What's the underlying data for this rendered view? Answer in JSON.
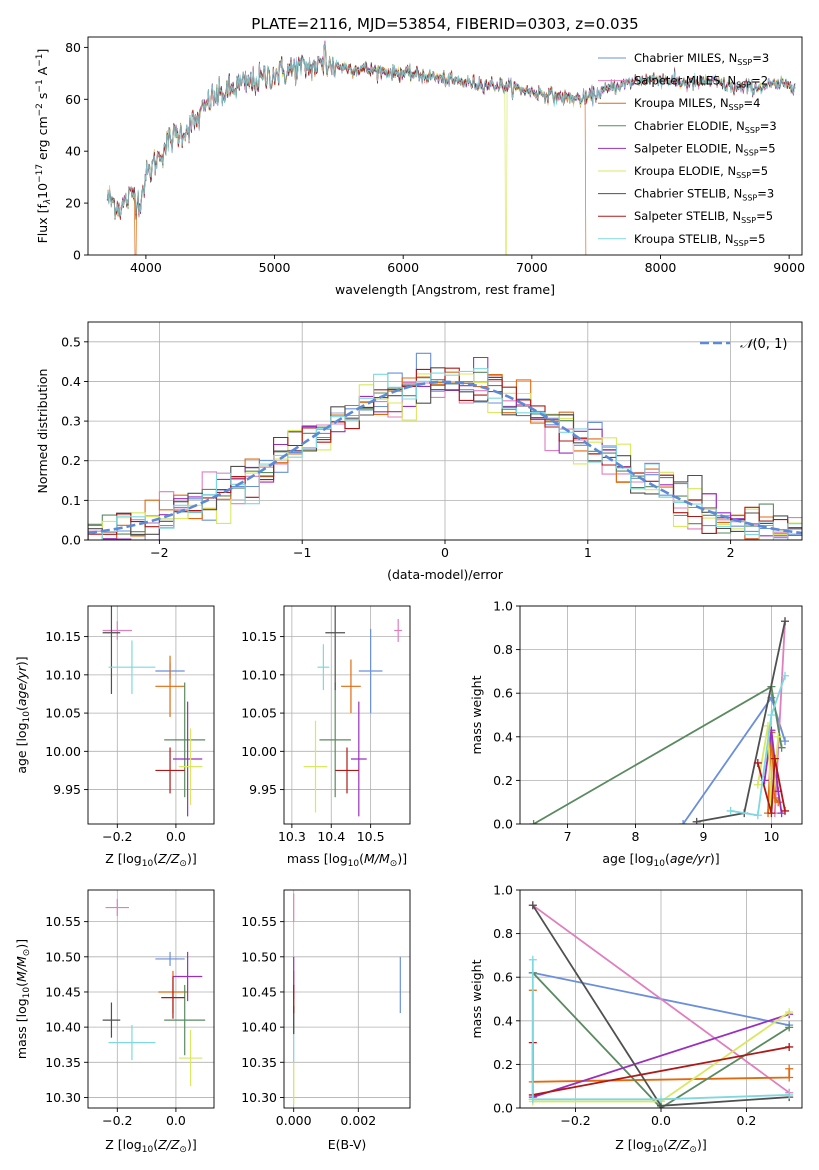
{
  "figure_title": "PLATE=2116, MJD=53854, FIBERID=0303, z=0.035",
  "colors": {
    "chabrier_miles": "#6a8fdc",
    "salpeter_miles": "#e07fbe",
    "kroupa_miles": "#e06a10",
    "chabrier_elodie": "#5a8a60",
    "salpeter_elodie": "#9a2fbe",
    "kroupa_elodie": "#d8e860",
    "chabrier_stelib": "#505050",
    "salpeter_stelib": "#b01818",
    "kroupa_stelib": "#7fd8e0",
    "normal_curve": "#5a8ad8",
    "grid": "#b0b0b0"
  },
  "chart_data": [
    {
      "id": "spectrum",
      "type": "line",
      "title": "PLATE=2116, MJD=53854, FIBERID=0303, z=0.035",
      "xlabel": "wavelength [Angstrom, rest frame]",
      "ylabel": "Flux [f_λ 10^-17 erg cm^-2 s^-1 A^-1]",
      "xlim": [
        3550,
        9100
      ],
      "ylim": [
        0,
        84
      ],
      "xticks": [
        4000,
        5000,
        6000,
        7000,
        8000,
        9000
      ],
      "yticks": [
        0,
        20,
        40,
        60,
        80
      ],
      "grid": false,
      "legend_position": "top-right",
      "data_range_x": [
        3700,
        9050
      ],
      "continuum": {
        "x": [
          3700,
          3800,
          3900,
          3950,
          4000,
          4100,
          4200,
          4300,
          4400,
          4500,
          4600,
          4700,
          4800,
          4900,
          5000,
          5200,
          5400,
          5600,
          5800,
          6000,
          6200,
          6400,
          6600,
          6800,
          7000,
          7200,
          7400,
          7600,
          7800,
          8000,
          8200,
          8400,
          8600,
          8800,
          9050
        ],
        "y": [
          22,
          18,
          24,
          20,
          30,
          38,
          45,
          48,
          52,
          60,
          62,
          65,
          66,
          68,
          70,
          72,
          73,
          72,
          71,
          70,
          69,
          67,
          66,
          65,
          63,
          61,
          60,
          64,
          67,
          68,
          66,
          67,
          64,
          65,
          66
        ]
      },
      "dropouts": [
        {
          "series": 2,
          "x": 3920
        },
        {
          "series": 5,
          "x": 6800
        },
        {
          "series": 2,
          "x": 7420
        }
      ],
      "series": [
        {
          "name": "Chabrier MILES, N_SSP=3",
          "label_main": "Chabrier MILES, N",
          "label_sub": "SSP",
          "label_tail": "=3",
          "color_key": "chabrier_miles"
        },
        {
          "name": "Salpeter MILES, N_SSP=2",
          "label_main": "Salpeter MILES, N",
          "label_sub": "SSP",
          "label_tail": "=2",
          "color_key": "salpeter_miles"
        },
        {
          "name": "Kroupa MILES, N_SSP=4",
          "label_main": "Kroupa MILES, N",
          "label_sub": "SSP",
          "label_tail": "=4",
          "color_key": "kroupa_miles"
        },
        {
          "name": "Chabrier ELODIE, N_SSP=3",
          "label_main": "Chabrier ELODIE, N",
          "label_sub": "SSP",
          "label_tail": "=3",
          "color_key": "chabrier_elodie"
        },
        {
          "name": "Salpeter ELODIE, N_SSP=5",
          "label_main": "Salpeter ELODIE, N",
          "label_sub": "SSP",
          "label_tail": "=5",
          "color_key": "salpeter_elodie"
        },
        {
          "name": "Kroupa ELODIE, N_SSP=5",
          "label_main": "Kroupa ELODIE, N",
          "label_sub": "SSP",
          "label_tail": "=5",
          "color_key": "kroupa_elodie"
        },
        {
          "name": "Chabrier STELIB, N_SSP=3",
          "label_main": "Chabrier STELIB, N",
          "label_sub": "SSP",
          "label_tail": "=3",
          "color_key": "chabrier_stelib"
        },
        {
          "name": "Salpeter STELIB, N_SSP=5",
          "label_main": "Salpeter STELIB, N",
          "label_sub": "SSP",
          "label_tail": "=5",
          "color_key": "salpeter_stelib"
        },
        {
          "name": "Kroupa STELIB, N_SSP=5",
          "label_main": "Kroupa STELIB, N",
          "label_sub": "SSP",
          "label_tail": "=5",
          "color_key": "kroupa_stelib"
        }
      ]
    },
    {
      "id": "residuals",
      "type": "histogram",
      "xlabel": "(data-model)/error",
      "ylabel": "Normed distribution",
      "xlim": [
        -2.5,
        2.5
      ],
      "ylim": [
        0,
        0.55
      ],
      "xticks": [
        -2,
        -1,
        0,
        1,
        2
      ],
      "yticks": [
        0.0,
        0.1,
        0.2,
        0.3,
        0.4,
        0.5
      ],
      "grid": true,
      "legend": "N(0,1)",
      "legend_position": "top-right",
      "bin_start": -2.5,
      "bin_width": 0.1,
      "bins": 50,
      "series_color_keys": [
        "chabrier_miles",
        "salpeter_miles",
        "kroupa_miles",
        "chabrier_elodie",
        "salpeter_elodie",
        "kroupa_elodie",
        "chabrier_stelib",
        "salpeter_stelib",
        "kroupa_stelib"
      ]
    },
    {
      "id": "age_vs_Z",
      "type": "errorbar",
      "xlabel": "Z [log10(Z/Z⊙)]",
      "ylabel": "age [log10(age/yr)]",
      "xlim": [
        -0.3,
        0.13
      ],
      "ylim": [
        9.905,
        10.19
      ],
      "xticks": [
        -0.2,
        0.0
      ],
      "yticks": [
        9.95,
        10.0,
        10.05,
        10.1,
        10.15
      ],
      "grid": true,
      "points": [
        {
          "color_key": "chabrier_miles",
          "x": -0.02,
          "xerr": 0.05,
          "y": 10.105,
          "yerr": 0.01
        },
        {
          "color_key": "salpeter_miles",
          "x": -0.2,
          "xerr": 0.05,
          "y": 10.158,
          "yerr": 0.012
        },
        {
          "color_key": "kroupa_miles",
          "x": -0.02,
          "xerr": 0.05,
          "y": 10.085,
          "yerr": 0.04
        },
        {
          "color_key": "chabrier_elodie",
          "x": 0.03,
          "xerr": 0.07,
          "y": 10.015,
          "yerr": 0.075
        },
        {
          "color_key": "salpeter_elodie",
          "x": 0.04,
          "xerr": 0.05,
          "y": 9.99,
          "yerr": 0.075
        },
        {
          "color_key": "kroupa_elodie",
          "x": 0.05,
          "xerr": 0.04,
          "y": 9.98,
          "yerr": 0.05
        },
        {
          "color_key": "chabrier_stelib",
          "x": -0.22,
          "xerr": 0.03,
          "y": 10.155,
          "yerr": 0.08
        },
        {
          "color_key": "salpeter_stelib",
          "x": -0.02,
          "xerr": 0.05,
          "y": 9.975,
          "yerr": 0.03
        },
        {
          "color_key": "kroupa_stelib",
          "x": -0.15,
          "xerr": 0.08,
          "y": 10.11,
          "yerr": 0.035
        }
      ]
    },
    {
      "id": "age_vs_mass",
      "type": "errorbar",
      "xlabel": "mass [log10(M/M⊙)]",
      "ylabel": "",
      "xlim": [
        10.28,
        10.6
      ],
      "ylim": [
        9.905,
        10.19
      ],
      "xticks": [
        10.3,
        10.4,
        10.5
      ],
      "yticks": [
        9.95,
        10.0,
        10.05,
        10.1,
        10.15
      ],
      "grid": true,
      "points": [
        {
          "color_key": "chabrier_miles",
          "x": 10.5,
          "xerr": 0.03,
          "y": 10.105,
          "yerr": 0.055
        },
        {
          "color_key": "salpeter_miles",
          "x": 10.57,
          "xerr": 0.01,
          "y": 10.158,
          "yerr": 0.015
        },
        {
          "color_key": "kroupa_miles",
          "x": 10.45,
          "xerr": 0.025,
          "y": 10.085,
          "yerr": 0.035
        },
        {
          "color_key": "chabrier_elodie",
          "x": 10.41,
          "xerr": 0.04,
          "y": 10.015,
          "yerr": 0.075
        },
        {
          "color_key": "salpeter_elodie",
          "x": 10.47,
          "xerr": 0.02,
          "y": 9.99,
          "yerr": 0.075
        },
        {
          "color_key": "kroupa_elodie",
          "x": 10.36,
          "xerr": 0.03,
          "y": 9.98,
          "yerr": 0.06
        },
        {
          "color_key": "chabrier_stelib",
          "x": 10.41,
          "xerr": 0.025,
          "y": 10.155,
          "yerr": 0.075
        },
        {
          "color_key": "salpeter_stelib",
          "x": 10.44,
          "xerr": 0.03,
          "y": 9.975,
          "yerr": 0.03
        },
        {
          "color_key": "kroupa_stelib",
          "x": 10.38,
          "xerr": 0.015,
          "y": 10.11,
          "yerr": 0.03
        }
      ]
    },
    {
      "id": "weight_vs_age",
      "type": "line",
      "xlabel": "age [log10(age/yr)]",
      "ylabel": "mass weight",
      "xlim": [
        6.3,
        10.45
      ],
      "ylim": [
        0,
        1
      ],
      "xticks": [
        7,
        8,
        9,
        10
      ],
      "yticks": [
        0.0,
        0.2,
        0.4,
        0.6,
        0.8,
        1.0
      ],
      "grid": true,
      "series": [
        {
          "color_key": "chabrier_miles",
          "x": [
            8.7,
            10.0,
            10.2
          ],
          "y": [
            0.0,
            0.58,
            0.38
          ]
        },
        {
          "color_key": "salpeter_miles",
          "x": [
            10.05,
            10.2
          ],
          "y": [
            0.05,
            0.93
          ]
        },
        {
          "color_key": "kroupa_miles",
          "x": [
            9.95,
            10.0,
            10.05,
            10.1
          ],
          "y": [
            0.05,
            0.42,
            0.12,
            0.1
          ]
        },
        {
          "color_key": "chabrier_elodie",
          "x": [
            6.5,
            10.0,
            10.15
          ],
          "y": [
            0.0,
            0.63,
            0.35
          ]
        },
        {
          "color_key": "salpeter_elodie",
          "x": [
            9.9,
            10.0,
            10.1,
            10.15
          ],
          "y": [
            0.2,
            0.43,
            0.15,
            0.05
          ]
        },
        {
          "color_key": "kroupa_elodie",
          "x": [
            9.8,
            9.95,
            10.0,
            10.1
          ],
          "y": [
            0.18,
            0.45,
            0.05,
            0.4
          ]
        },
        {
          "color_key": "chabrier_stelib",
          "x": [
            8.9,
            9.6,
            10.2
          ],
          "y": [
            0.01,
            0.05,
            0.93
          ]
        },
        {
          "color_key": "salpeter_stelib",
          "x": [
            9.8,
            10.0,
            10.05,
            10.2
          ],
          "y": [
            0.28,
            0.05,
            0.3,
            0.06
          ]
        },
        {
          "color_key": "kroupa_stelib",
          "x": [
            9.4,
            9.8,
            10.0,
            10.2
          ],
          "y": [
            0.06,
            0.04,
            0.5,
            0.68
          ]
        }
      ]
    },
    {
      "id": "mass_vs_Z",
      "type": "errorbar",
      "xlabel": "Z [log10(Z/Z⊙)]",
      "ylabel": "mass [log10(M/M⊙)]",
      "xlim": [
        -0.3,
        0.13
      ],
      "ylim": [
        10.285,
        10.595
      ],
      "xticks": [
        -0.2,
        0.0
      ],
      "yticks": [
        10.3,
        10.35,
        10.4,
        10.45,
        10.5,
        10.55
      ],
      "grid": true,
      "points": [
        {
          "color_key": "chabrier_miles",
          "x": -0.02,
          "xerr": 0.05,
          "y": 10.497,
          "yerr": 0.01
        },
        {
          "color_key": "salpeter_miles",
          "x": -0.2,
          "xerr": 0.04,
          "y": 10.57,
          "yerr": 0.012
        },
        {
          "color_key": "kroupa_miles",
          "x": -0.01,
          "xerr": 0.05,
          "y": 10.45,
          "yerr": 0.03
        },
        {
          "color_key": "chabrier_elodie",
          "x": 0.03,
          "xerr": 0.07,
          "y": 10.41,
          "yerr": 0.05
        },
        {
          "color_key": "salpeter_elodie",
          "x": 0.04,
          "xerr": 0.05,
          "y": 10.472,
          "yerr": 0.035
        },
        {
          "color_key": "kroupa_elodie",
          "x": 0.05,
          "xerr": 0.04,
          "y": 10.356,
          "yerr": 0.04
        },
        {
          "color_key": "chabrier_stelib",
          "x": -0.22,
          "xerr": 0.03,
          "y": 10.41,
          "yerr": 0.025
        },
        {
          "color_key": "salpeter_stelib",
          "x": -0.01,
          "xerr": 0.04,
          "y": 10.442,
          "yerr": 0.03
        },
        {
          "color_key": "kroupa_stelib",
          "x": -0.15,
          "xerr": 0.08,
          "y": 10.378,
          "yerr": 0.025
        }
      ]
    },
    {
      "id": "mass_vs_ebv",
      "type": "errorbar",
      "xlabel": "E(B-V)",
      "ylabel": "",
      "xlim": [
        -0.0003,
        0.0036
      ],
      "ylim": [
        10.285,
        10.595
      ],
      "xticks": [
        0.0,
        0.002
      ],
      "yticks": [
        10.3,
        10.35,
        10.4,
        10.45,
        10.5,
        10.55
      ],
      "grid": true,
      "points": [
        {
          "color_key": "chabrier_miles",
          "x": 0.0033,
          "xerr": 0.0,
          "y": 10.46,
          "yerr": 0.04
        },
        {
          "color_key": "salpeter_miles",
          "x": 0.0,
          "xerr": 0.0,
          "y": 10.57,
          "yerr": 0.02
        },
        {
          "color_key": "kroupa_miles",
          "x": 0.0,
          "xerr": 0.0,
          "y": 10.45,
          "yerr": 0.03
        },
        {
          "color_key": "chabrier_elodie",
          "x": 0.0,
          "xerr": 0.0,
          "y": 10.41,
          "yerr": 0.02
        },
        {
          "color_key": "salpeter_elodie",
          "x": 0.0,
          "xerr": 0.0,
          "y": 10.47,
          "yerr": 0.03
        },
        {
          "color_key": "kroupa_elodie",
          "x": 0.0,
          "xerr": 0.0,
          "y": 10.32,
          "yerr": 0.03
        },
        {
          "color_key": "chabrier_stelib",
          "x": 0.0,
          "xerr": 0.0,
          "y": 10.41,
          "yerr": 0.02
        },
        {
          "color_key": "salpeter_stelib",
          "x": 0.0,
          "xerr": 0.0,
          "y": 10.44,
          "yerr": 0.02
        },
        {
          "color_key": "kroupa_stelib",
          "x": 0.0,
          "xerr": 0.0,
          "y": 10.37,
          "yerr": 0.02
        }
      ]
    },
    {
      "id": "weight_vs_Z",
      "type": "line",
      "xlabel": "Z [log10(Z/Z⊙)]",
      "ylabel": "mass weight",
      "xlim": [
        -0.33,
        0.33
      ],
      "ylim": [
        0,
        1
      ],
      "xticks": [
        -0.2,
        0.0,
        0.2
      ],
      "yticks": [
        0.0,
        0.2,
        0.4,
        0.6,
        0.8,
        1.0
      ],
      "grid": true,
      "series": [
        {
          "color_key": "chabrier_miles",
          "x": [
            -0.3,
            0.3
          ],
          "y": [
            0.62,
            0.38
          ]
        },
        {
          "color_key": "salpeter_miles",
          "x": [
            -0.3,
            0.3
          ],
          "y": [
            0.93,
            0.07
          ]
        },
        {
          "color_key": "kroupa_miles",
          "x": [
            -0.3,
            -0.3,
            0.3,
            0.3
          ],
          "y": [
            0.54,
            0.12,
            0.14,
            0.18
          ]
        },
        {
          "color_key": "chabrier_elodie",
          "x": [
            -0.3,
            0.0,
            0.3
          ],
          "y": [
            0.62,
            0.0,
            0.37
          ]
        },
        {
          "color_key": "salpeter_elodie",
          "x": [
            -0.3,
            0.3
          ],
          "y": [
            0.05,
            0.43
          ]
        },
        {
          "color_key": "kroupa_elodie",
          "x": [
            -0.3,
            -0.3,
            0.0,
            0.3
          ],
          "y": [
            0.04,
            0.03,
            0.03,
            0.44
          ]
        },
        {
          "color_key": "chabrier_stelib",
          "x": [
            -0.3,
            0.0,
            0.3
          ],
          "y": [
            0.93,
            0.01,
            0.05
          ]
        },
        {
          "color_key": "salpeter_stelib",
          "x": [
            -0.3,
            -0.3,
            0.3
          ],
          "y": [
            0.3,
            0.06,
            0.28
          ]
        },
        {
          "color_key": "kroupa_stelib",
          "x": [
            -0.3,
            -0.3,
            0.0,
            0.3
          ],
          "y": [
            0.68,
            0.04,
            0.04,
            0.06
          ]
        }
      ]
    }
  ]
}
